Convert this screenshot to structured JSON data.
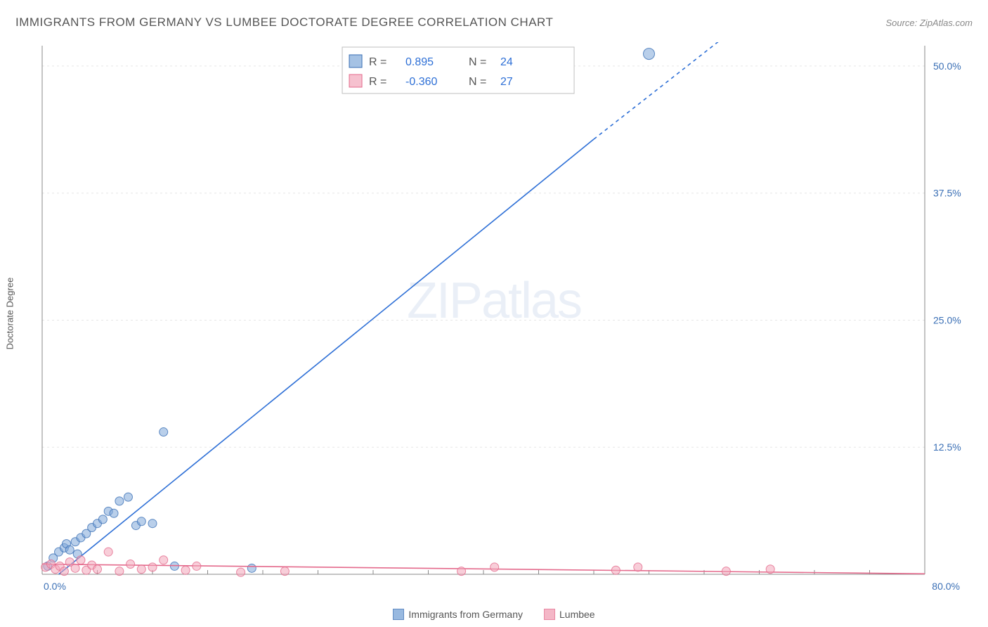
{
  "title": "IMMIGRANTS FROM GERMANY VS LUMBEE DOCTORATE DEGREE CORRELATION CHART",
  "source_label": "Source: ZipAtlas.com",
  "watermark": {
    "zip": "ZIP",
    "atlas": "atlas"
  },
  "y_axis_title": "Doctorate Degree",
  "chart": {
    "type": "scatter-with-regression",
    "xlim": [
      0,
      80
    ],
    "ylim": [
      0,
      52
    ],
    "x_ticks": [
      {
        "v": 0,
        "label": "0.0%"
      },
      {
        "v": 80,
        "label": "80.0%"
      }
    ],
    "y_ticks": [
      {
        "v": 12.5,
        "label": "12.5%"
      },
      {
        "v": 25.0,
        "label": "25.0%"
      },
      {
        "v": 37.5,
        "label": "37.5%"
      },
      {
        "v": 50.0,
        "label": "50.0%"
      }
    ],
    "x_minor_ticks": [
      5,
      10,
      15,
      20,
      25,
      30,
      35,
      40,
      45,
      50,
      55,
      60,
      65,
      70,
      75
    ],
    "grid_color": "#e6e6e6",
    "axis_color": "#888888",
    "tick_label_color": "#3a6fb5",
    "tick_label_fontsize": 14,
    "background_color": "#ffffff",
    "marker_radius": 6,
    "marker_opacity": 0.55,
    "outlier_marker_radius": 8,
    "line_width": 1.6,
    "series": [
      {
        "name": "Immigrants from Germany",
        "color": "#7fa8d9",
        "stroke": "#3a6fb5",
        "line_color": "#2d6fd6",
        "R": "0.895",
        "N": "24",
        "points": [
          [
            0.5,
            0.8
          ],
          [
            1,
            1.6
          ],
          [
            1.5,
            2.2
          ],
          [
            2,
            2.6
          ],
          [
            2.2,
            3.0
          ],
          [
            2.5,
            2.4
          ],
          [
            3,
            3.2
          ],
          [
            3.2,
            2.0
          ],
          [
            3.5,
            3.6
          ],
          [
            4,
            4.0
          ],
          [
            4.5,
            4.6
          ],
          [
            5,
            5.0
          ],
          [
            5.5,
            5.4
          ],
          [
            6,
            6.2
          ],
          [
            6.5,
            6.0
          ],
          [
            7,
            7.2
          ],
          [
            7.8,
            7.6
          ],
          [
            8.5,
            4.8
          ],
          [
            9,
            5.2
          ],
          [
            10,
            5.0
          ],
          [
            11,
            14.0
          ],
          [
            12,
            0.8
          ],
          [
            19,
            0.6
          ],
          [
            55,
            51.2
          ]
        ],
        "regression": {
          "x1": 1.5,
          "y1": 0,
          "x2_solid": 50,
          "y2_solid": 42.8,
          "x2_dash": 62,
          "y2_dash": 53
        }
      },
      {
        "name": "Lumbee",
        "color": "#f2a6ba",
        "stroke": "#e46a8c",
        "line_color": "#e46a8c",
        "R": "-0.360",
        "N": "27",
        "points": [
          [
            0.3,
            0.7
          ],
          [
            0.8,
            1.0
          ],
          [
            1.2,
            0.5
          ],
          [
            1.6,
            0.8
          ],
          [
            2,
            0.3
          ],
          [
            2.5,
            1.2
          ],
          [
            3,
            0.6
          ],
          [
            3.5,
            1.4
          ],
          [
            4,
            0.4
          ],
          [
            4.5,
            0.9
          ],
          [
            5,
            0.5
          ],
          [
            6,
            2.2
          ],
          [
            7,
            0.3
          ],
          [
            8,
            1.0
          ],
          [
            9,
            0.5
          ],
          [
            10,
            0.7
          ],
          [
            11,
            1.4
          ],
          [
            13,
            0.4
          ],
          [
            14,
            0.8
          ],
          [
            18,
            0.2
          ],
          [
            22,
            0.3
          ],
          [
            38,
            0.3
          ],
          [
            41,
            0.7
          ],
          [
            52,
            0.4
          ],
          [
            54,
            0.7
          ],
          [
            62,
            0.3
          ],
          [
            66,
            0.5
          ]
        ],
        "regression": {
          "x1": 0,
          "y1": 1.0,
          "x2_solid": 80,
          "y2_solid": 0.05,
          "x2_dash": 80,
          "y2_dash": 0.05
        }
      }
    ]
  },
  "legend_top": {
    "border_color": "#bfbfbf",
    "bg": "#ffffff",
    "label_color": "#555555",
    "value_color": "#2d6fd6",
    "fontsize": 16,
    "rows": [
      {
        "swatch": 0,
        "R_label": "R =",
        "R_val": "0.895",
        "N_label": "N =",
        "N_val": "24"
      },
      {
        "swatch": 1,
        "R_label": "R =",
        "R_val": "-0.360",
        "N_label": "N =",
        "N_val": "27"
      }
    ]
  },
  "legend_bottom": {
    "items": [
      {
        "swatch": 0,
        "label": "Immigrants from Germany"
      },
      {
        "swatch": 1,
        "label": "Lumbee"
      }
    ]
  }
}
